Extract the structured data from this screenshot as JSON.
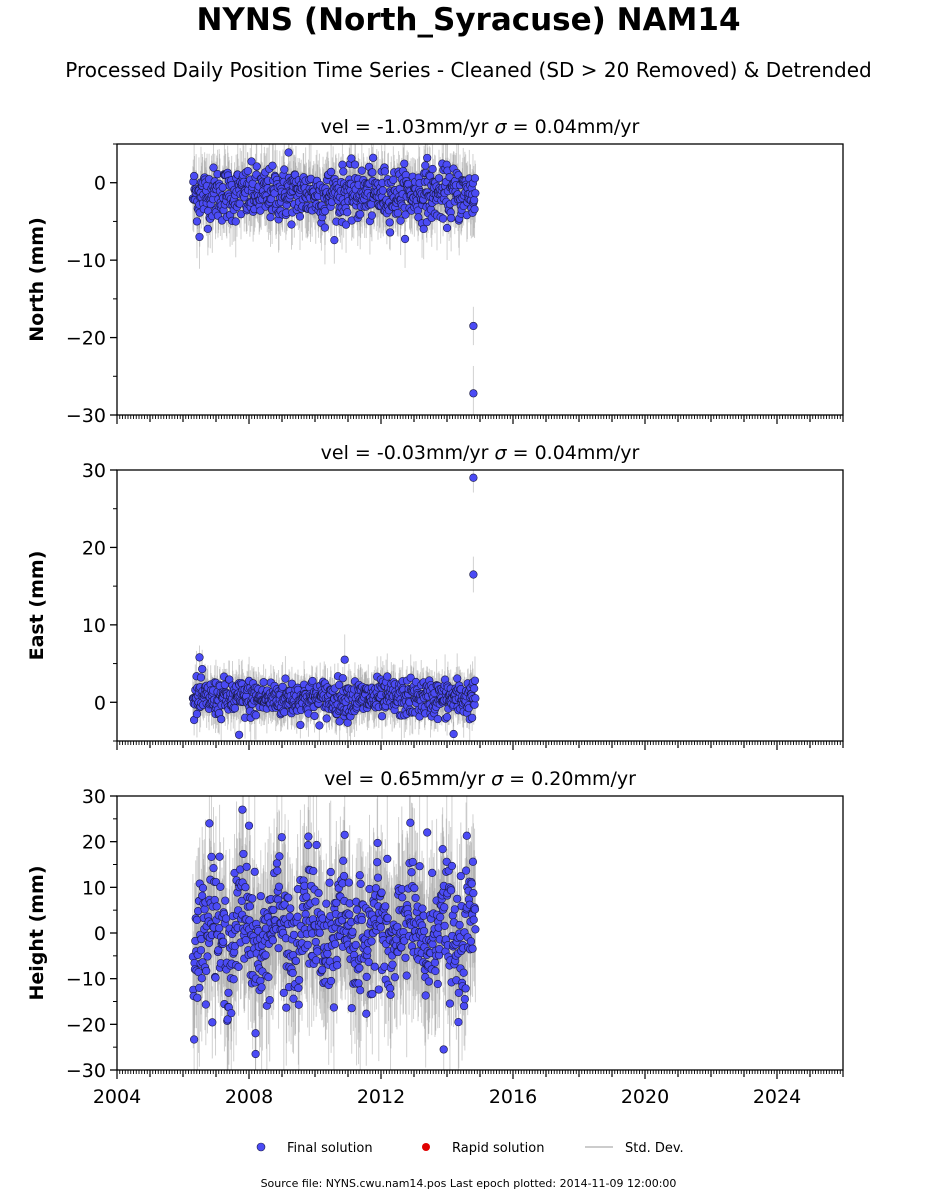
{
  "header": {
    "title": "NYNS (North_Syracuse) NAM14",
    "subtitle": "Processed Daily Position Time Series - Cleaned (SD > 20 Removed) & Detrended"
  },
  "footer": {
    "text": "Source file: NYNS.cwu.nam14.pos  Last epoch plotted: 2014-11-09 12:00:00"
  },
  "legend": {
    "placement": "bottom-center",
    "entries": [
      {
        "label": "Final solution",
        "color": "#4b4bf5"
      },
      {
        "label": "Rapid solution",
        "color": "#e00000"
      },
      {
        "label": "Std. Dev.",
        "color": "#bbbbbb"
      }
    ]
  },
  "chart_data": {
    "type": "scatter",
    "x_range": [
      2004,
      2026
    ],
    "x_ticks": [
      "2004",
      "2008",
      "2012",
      "2016",
      "2020",
      "2024"
    ],
    "x_tick_values": [
      2004,
      2008,
      2012,
      2016,
      2020,
      2024
    ],
    "data_span": [
      2006.3,
      2014.86
    ],
    "panels": [
      {
        "ylabel": "North (mm)",
        "vel_label": "vel = -1.03mm/yr",
        "sigma_label": "= 0.04mm/yr",
        "ylim": [
          -30,
          5
        ],
        "yticks": [
          0,
          -10,
          -20,
          -30
        ],
        "ytick_labels": [
          "0",
          "−10",
          "−20",
          "−30"
        ],
        "center": -1.5,
        "spread": 1.7,
        "outliers": [
          [
            2013.4,
            3.2
          ],
          [
            2009.2,
            3.9
          ],
          [
            2014.8,
            -18.5
          ],
          [
            2014.8,
            -27.2
          ],
          [
            2006.5,
            -7.0
          ],
          [
            2010.3,
            -5.8
          ]
        ]
      },
      {
        "ylabel": "East (mm)",
        "vel_label": "vel = -0.03mm/yr",
        "sigma_label": "= 0.04mm/yr",
        "ylim": [
          -5,
          30
        ],
        "yticks": [
          0,
          10,
          20,
          30
        ],
        "ytick_labels": [
          "0",
          "10",
          "20",
          "30"
        ],
        "center": 0.5,
        "spread": 1.2,
        "outliers": [
          [
            2014.8,
            29.0
          ],
          [
            2014.8,
            16.5
          ],
          [
            2010.9,
            5.5
          ],
          [
            2006.5,
            5.8
          ],
          [
            2007.7,
            -4.2
          ],
          [
            2014.2,
            -4.1
          ]
        ]
      },
      {
        "ylabel": "Height (mm)",
        "vel_label": "vel = 0.65mm/yr",
        "sigma_label": "= 0.20mm/yr",
        "ylim": [
          -30,
          30
        ],
        "yticks": [
          30,
          20,
          10,
          0,
          -10,
          -20,
          -30
        ],
        "ytick_labels": [
          "30",
          "20",
          "10",
          "0",
          "−10",
          "−20",
          "−30"
        ],
        "center": 0,
        "spread": 6.5,
        "outliers": [
          [
            2007.8,
            27.0
          ],
          [
            2006.8,
            24.0
          ],
          [
            2008.0,
            23.5
          ],
          [
            2013.4,
            22.0
          ],
          [
            2014.6,
            21.3
          ],
          [
            2009.8,
            21.1
          ],
          [
            2010.9,
            21.5
          ],
          [
            2008.2,
            -26.5
          ],
          [
            2013.9,
            -25.5
          ]
        ]
      }
    ]
  }
}
